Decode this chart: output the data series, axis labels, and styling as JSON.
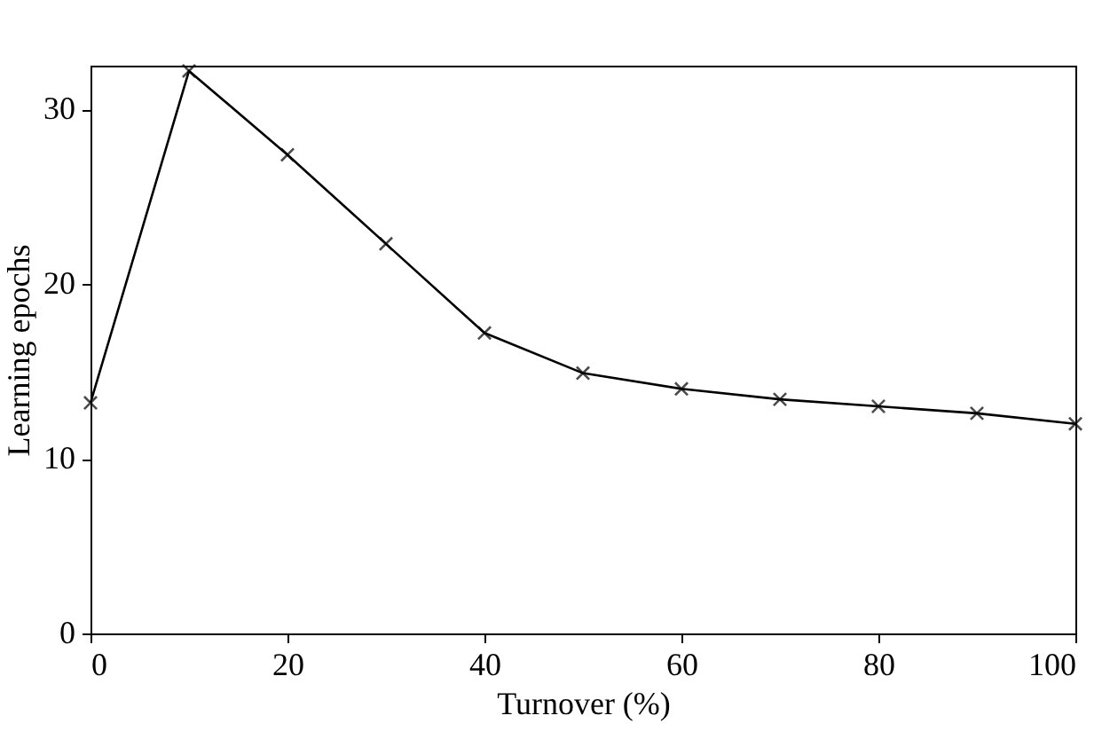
{
  "chart_data": {
    "type": "line",
    "xlabel": "Turnover (%)",
    "ylabel": "Learning epochs",
    "x": [
      0,
      10,
      20,
      30,
      40,
      50,
      60,
      70,
      80,
      90,
      100
    ],
    "series": [
      {
        "color": "#000000",
        "values": [
          13.2,
          32.2,
          27.4,
          22.3,
          17.2,
          14.9,
          14.0,
          13.4,
          13.0,
          12.6,
          12.0
        ]
      }
    ],
    "xlim": [
      0,
      100
    ],
    "xticks": [
      0,
      20,
      40,
      60,
      80,
      100
    ],
    "ylim": [
      0,
      32.5
    ],
    "yticks": [
      0,
      10,
      20,
      30
    ],
    "marker": "cross",
    "line_style": "solid",
    "grid": false
  }
}
